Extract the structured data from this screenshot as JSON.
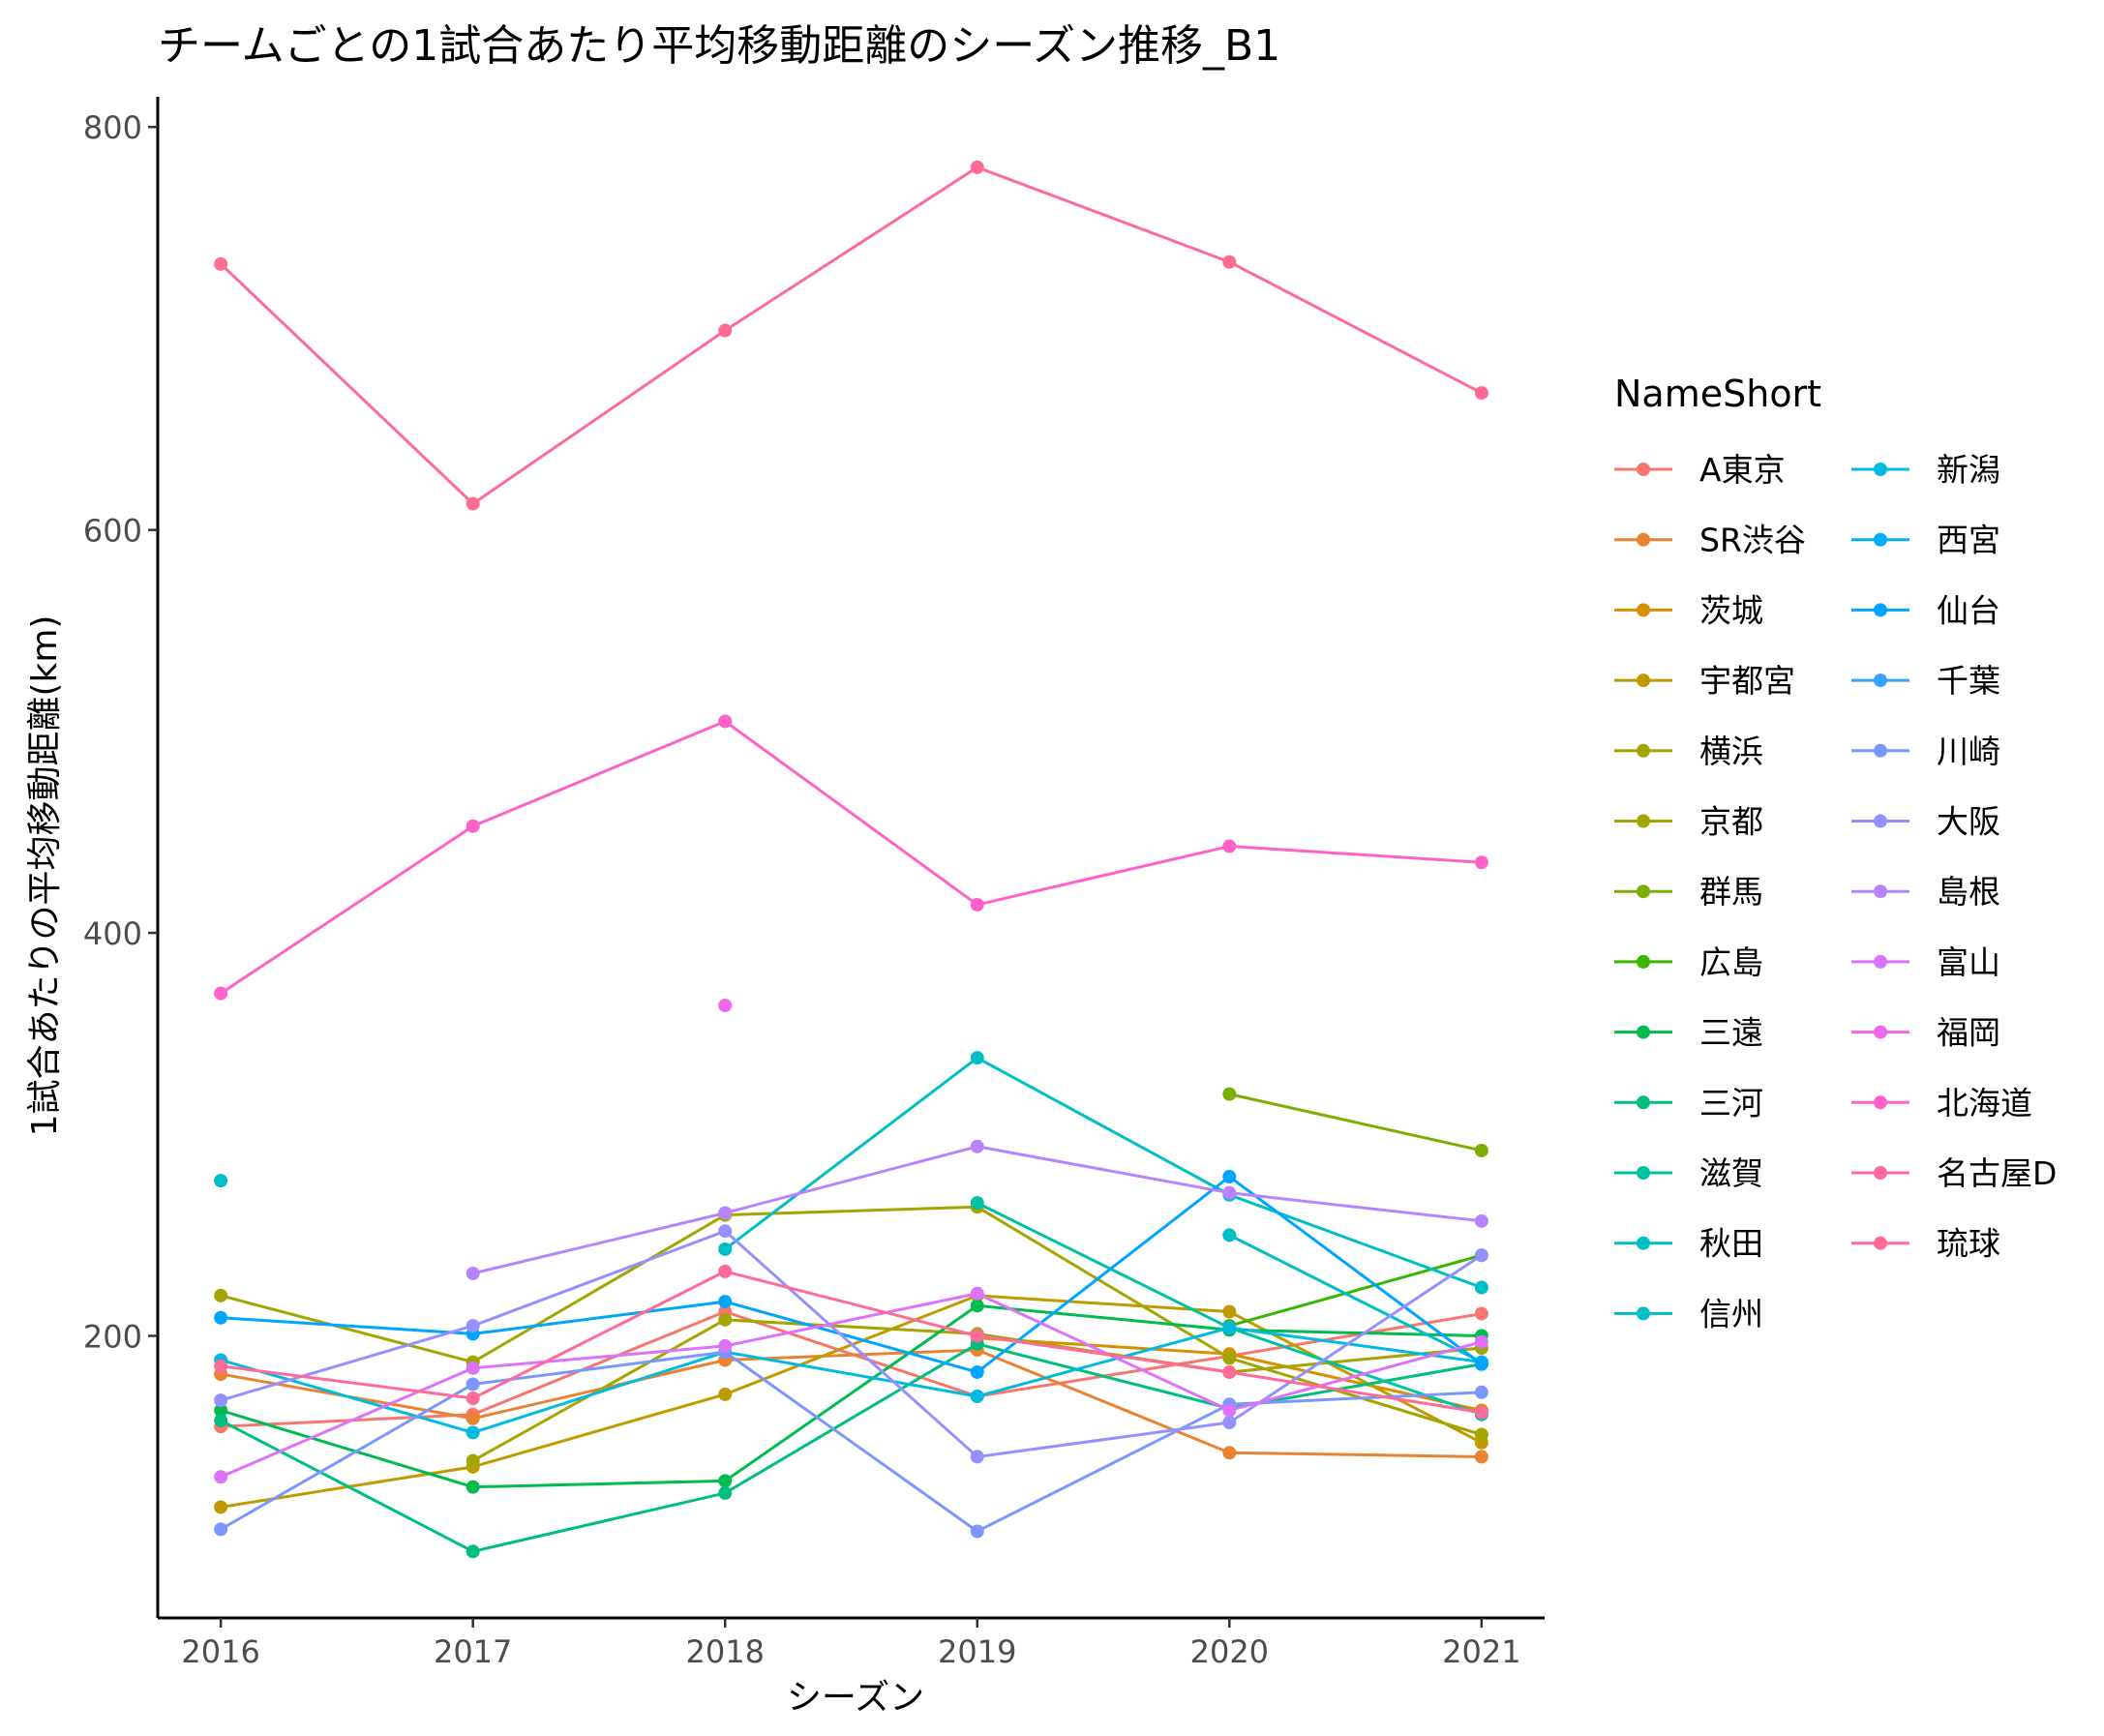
{
  "chart_data": {
    "type": "line",
    "title": "チームごとの1試合あたり平均移動距離のシーズン推移_B1",
    "xlabel": "シーズン",
    "ylabel": "1試合あたりの平均移動距離(km)",
    "x": [
      2016,
      2017,
      2018,
      2019,
      2020,
      2021
    ],
    "ylim": [
      60,
      815
    ],
    "yticks": [
      200,
      400,
      600,
      800
    ],
    "grid": false,
    "legend": {
      "title": "NameShort",
      "position": "right",
      "columns": 2
    },
    "series": [
      {
        "name": "A東京",
        "color": "#F8766D",
        "values": [
          155,
          161,
          212,
          170,
          190,
          211
        ]
      },
      {
        "name": "SR渋谷",
        "color": "#EA8331",
        "values": [
          181,
          159,
          188,
          193,
          142,
          140
        ]
      },
      {
        "name": "茨城",
        "color": "#D89000",
        "values": [
          null,
          null,
          null,
          199,
          191,
          163
        ]
      },
      {
        "name": "宇都宮",
        "color": "#C09B00",
        "values": [
          115,
          135,
          171,
          220,
          212,
          147
        ]
      },
      {
        "name": "横浜",
        "color": "#A3A500",
        "values": [
          220,
          187,
          260,
          264,
          189,
          151
        ]
      },
      {
        "name": "京都",
        "color": "#A3A500",
        "values": [
          null,
          138,
          208,
          201,
          182,
          194
        ]
      },
      {
        "name": "群馬",
        "color": "#7CAE00",
        "values": [
          null,
          null,
          null,
          null,
          320,
          292
        ]
      },
      {
        "name": "広島",
        "color": "#39B600",
        "values": [
          null,
          null,
          null,
          null,
          205,
          240
        ]
      },
      {
        "name": "三遠",
        "color": "#00BB4E",
        "values": [
          163,
          125,
          128,
          215,
          203,
          200
        ]
      },
      {
        "name": "三河",
        "color": "#00BF7D",
        "values": [
          158,
          93,
          122,
          196,
          164,
          186
        ]
      },
      {
        "name": "滋賀",
        "color": "#00C1A3",
        "values": [
          null,
          null,
          null,
          266,
          204,
          161
        ]
      },
      {
        "name": "秋田",
        "color": "#00BFC4",
        "values": [
          277,
          null,
          243,
          338,
          270,
          224
        ]
      },
      {
        "name": "信州",
        "color": "#00BFC4",
        "values": [
          null,
          null,
          null,
          null,
          250,
          187
        ]
      },
      {
        "name": "新潟",
        "color": "#00BAE0",
        "values": [
          188,
          152,
          192,
          170,
          204,
          187
        ]
      },
      {
        "name": "西宮",
        "color": "#00B0F6",
        "values": [
          null,
          null,
          null,
          null,
          null,
          186
        ]
      },
      {
        "name": "仙台",
        "color": "#00A5FF",
        "values": [
          209,
          201,
          217,
          182,
          279,
          186
        ]
      },
      {
        "name": "千葉",
        "color": "#35A2FF",
        "values": [
          null,
          null,
          null,
          null,
          null,
          null
        ]
      },
      {
        "name": "川崎",
        "color": "#7997FF",
        "values": [
          104,
          176,
          192,
          103,
          166,
          172
        ]
      },
      {
        "name": "大阪",
        "color": "#9590FF",
        "values": [
          168,
          205,
          252,
          140,
          157,
          240
        ]
      },
      {
        "name": "島根",
        "color": "#B983FF",
        "values": [
          null,
          231,
          261,
          294,
          271,
          257
        ]
      },
      {
        "name": "富山",
        "color": "#DC71FA",
        "values": [
          130,
          184,
          195,
          221,
          163,
          197
        ]
      },
      {
        "name": "福岡",
        "color": "#EF67EB",
        "values": [
          null,
          null,
          364,
          null,
          null,
          null
        ]
      },
      {
        "name": "北海道",
        "color": "#FF61C9",
        "values": [
          370,
          453,
          505,
          414,
          443,
          435
        ]
      },
      {
        "name": "名古屋D",
        "color": "#FF6A98",
        "values": [
          185,
          169,
          232,
          200,
          182,
          162
        ]
      },
      {
        "name": "琉球",
        "color": "#FF6C91",
        "values": [
          732,
          613,
          699,
          780,
          733,
          668
        ]
      }
    ]
  }
}
